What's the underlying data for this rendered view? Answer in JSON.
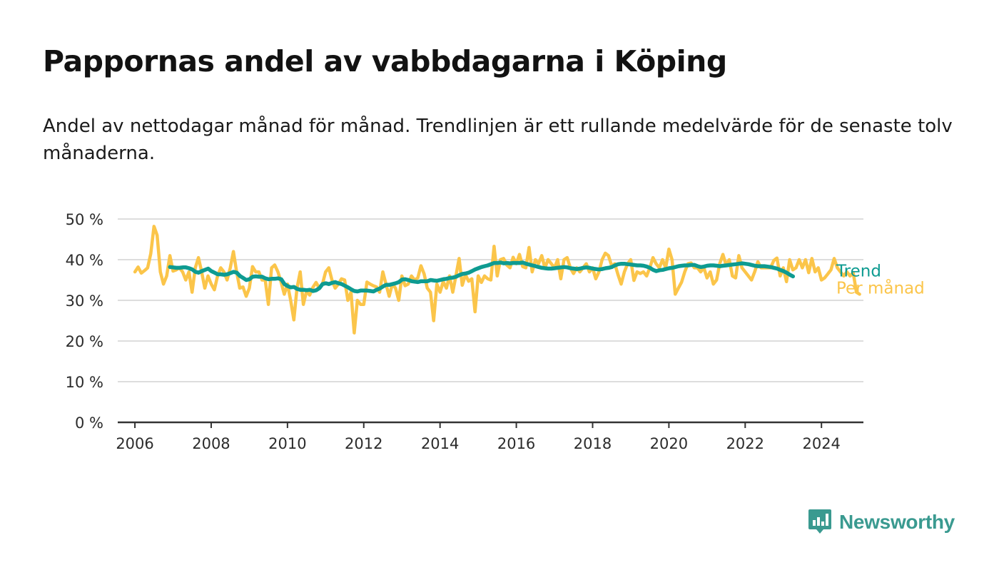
{
  "title": "Pappornas andel av vabbdagarna i Köping",
  "subtitle": "Andel av nettodagar månad för månad. Trendlinjen är ett rullande medelvärde för de senaste tolv månaderna.",
  "logo": {
    "text": "Newsworthy",
    "icon": "newsworthy-logo-icon"
  },
  "colors": {
    "trend": "#0e9b91",
    "monthly": "#fbc54a",
    "grid": "#dddddd",
    "axis": "#333333",
    "label": "#2b2b2b",
    "logo": "#3a9a90"
  },
  "chart_data": {
    "type": "line",
    "title": "Pappornas andel av vabbdagarna i Köping",
    "subtitle": "Andel av nettodagar månad för månad. Trendlinjen är ett rullande medelvärde för de senaste tolv månaderna.",
    "xlabel": "",
    "ylabel": "",
    "xlim": [
      2005.55,
      2025.1
    ],
    "ylim": [
      0,
      50
    ],
    "x_ticks": [
      2006,
      2008,
      2010,
      2012,
      2014,
      2016,
      2018,
      2020,
      2022,
      2024
    ],
    "y_ticks": [
      0,
      10,
      20,
      30,
      40,
      50
    ],
    "y_tick_labels": [
      "0 %",
      "10 %",
      "20 %",
      "30 %",
      "40 %",
      "50 %"
    ],
    "grid": true,
    "legend": "line-end labels at right",
    "series": [
      {
        "name": "Per månad",
        "x_start": 2006.0,
        "x_step": 0.08333,
        "values": [
          37,
          38.2,
          36.7,
          37.3,
          38,
          41.5,
          48.2,
          46,
          37,
          34,
          36,
          41,
          37.2,
          37.5,
          38,
          37,
          35,
          37,
          32,
          38,
          40.5,
          37,
          33,
          36,
          34,
          32.6,
          36,
          38,
          37,
          35,
          38,
          42,
          37,
          33,
          33.3,
          31,
          33,
          38.3,
          37,
          37,
          35,
          35,
          29,
          38,
          38.7,
          37,
          34.5,
          31.5,
          34,
          30,
          25.2,
          33,
          37,
          29,
          32.3,
          31.3,
          33.2,
          34.4,
          33,
          34,
          37,
          38,
          35,
          33,
          34,
          35.3,
          35,
          30,
          32,
          22,
          30,
          29,
          29,
          34.5,
          34,
          33.6,
          33.3,
          32,
          37,
          34,
          31,
          34,
          33,
          30,
          36,
          33.6,
          34,
          36,
          35,
          35.5,
          38.5,
          36.5,
          33,
          32,
          25,
          34,
          32,
          34.6,
          33,
          36,
          32,
          36,
          40.3,
          33.7,
          36.3,
          34.7,
          35.3,
          27.2,
          36,
          34.4,
          36,
          35.3,
          35,
          43.3,
          36,
          40,
          40.3,
          38.7,
          38,
          40.6,
          39,
          41.3,
          38.3,
          38,
          43,
          37,
          40,
          39,
          41,
          38,
          40,
          39,
          38,
          40,
          35.3,
          40,
          40.5,
          38,
          36.6,
          38,
          37,
          38,
          39,
          37,
          38,
          35.3,
          37,
          40,
          41.6,
          41,
          38.5,
          39,
          36.3,
          34,
          37,
          39,
          40,
          34.9,
          37,
          36.6,
          37,
          36,
          38,
          40.5,
          39,
          38,
          40,
          38,
          42.6,
          40,
          31.5,
          33,
          34.5,
          37,
          39,
          39.2,
          38,
          38,
          37,
          38,
          35.5,
          37,
          34,
          35,
          39,
          41.3,
          38.7,
          40,
          36,
          35.5,
          41,
          38,
          37,
          36,
          35,
          37,
          39.5,
          38,
          38,
          38,
          38,
          39.8,
          40.4,
          36,
          38,
          34.6,
          40,
          37.5,
          38,
          40,
          38,
          40,
          36.8,
          40.3,
          37,
          38,
          35,
          35.5,
          36.5,
          37.5,
          40.3,
          38,
          37,
          36,
          37,
          36,
          36.8,
          32,
          31.5
        ]
      },
      {
        "name": "Trend",
        "x_start": 2006.92,
        "x_step": 0.08333,
        "values": [
          38.2,
          38.1,
          38.0,
          38.0,
          38.1,
          38.1,
          37.9,
          37.6,
          37.0,
          36.8,
          37.2,
          37.5,
          37.8,
          37.2,
          36.8,
          36.4,
          36.4,
          36.3,
          36.4,
          36.7,
          37.0,
          36.8,
          36.0,
          35.5,
          35.0,
          35.2,
          35.8,
          35.9,
          35.8,
          35.8,
          35.4,
          35.2,
          35.3,
          35.3,
          35.4,
          35.2,
          34.0,
          33.5,
          33.2,
          33.3,
          32.8,
          32.6,
          32.6,
          32.5,
          32.6,
          32.3,
          32.5,
          33.0,
          34.0,
          34.2,
          34.0,
          34.3,
          34.5,
          34.2,
          34.0,
          33.6,
          33.2,
          32.7,
          32.3,
          32.2,
          32.4,
          32.4,
          32.4,
          32.3,
          32.2,
          32.6,
          32.9,
          33.4,
          33.8,
          33.8,
          34.0,
          34.2,
          34.5,
          35.1,
          35.2,
          35.0,
          34.7,
          34.6,
          34.5,
          34.7,
          34.7,
          34.7,
          35.0,
          34.9,
          34.8,
          35.0,
          35.2,
          35.3,
          35.5,
          35.6,
          35.8,
          36.2,
          36.5,
          36.6,
          36.8,
          37.2,
          37.6,
          37.9,
          38.2,
          38.4,
          38.6,
          38.9,
          39.2,
          39.2,
          39.3,
          39.1,
          39.2,
          39.1,
          39.2,
          39.2,
          39.2,
          39.3,
          39.0,
          38.8,
          38.6,
          38.4,
          38.2,
          38.0,
          37.9,
          37.8,
          37.8,
          37.9,
          38.0,
          38.1,
          38.2,
          38.1,
          37.9,
          37.8,
          37.7,
          37.8,
          38.0,
          38.1,
          38.0,
          37.8,
          37.7,
          37.6,
          37.7,
          37.9,
          38.0,
          38.2,
          38.6,
          38.9,
          39.0,
          39.0,
          38.9,
          38.8,
          38.7,
          38.6,
          38.6,
          38.5,
          38.3,
          38.0,
          37.5,
          37.2,
          37.4,
          37.5,
          37.7,
          37.9,
          38.0,
          38.2,
          38.4,
          38.5,
          38.6,
          38.6,
          38.7,
          38.7,
          38.4,
          38.2,
          38.3,
          38.5,
          38.6,
          38.6,
          38.5,
          38.4,
          38.5,
          38.6,
          38.7,
          38.8,
          38.9,
          39.0,
          39.1,
          39.0,
          38.9,
          38.7,
          38.5,
          38.4,
          38.4,
          38.4,
          38.3,
          38.2,
          38.0,
          37.8,
          37.5,
          37.2,
          36.8,
          36.3,
          35.9
        ]
      }
    ],
    "annotations": [
      {
        "text": "Trend",
        "series": "Trend"
      },
      {
        "text": "Per månad",
        "series": "Per månad"
      }
    ]
  }
}
